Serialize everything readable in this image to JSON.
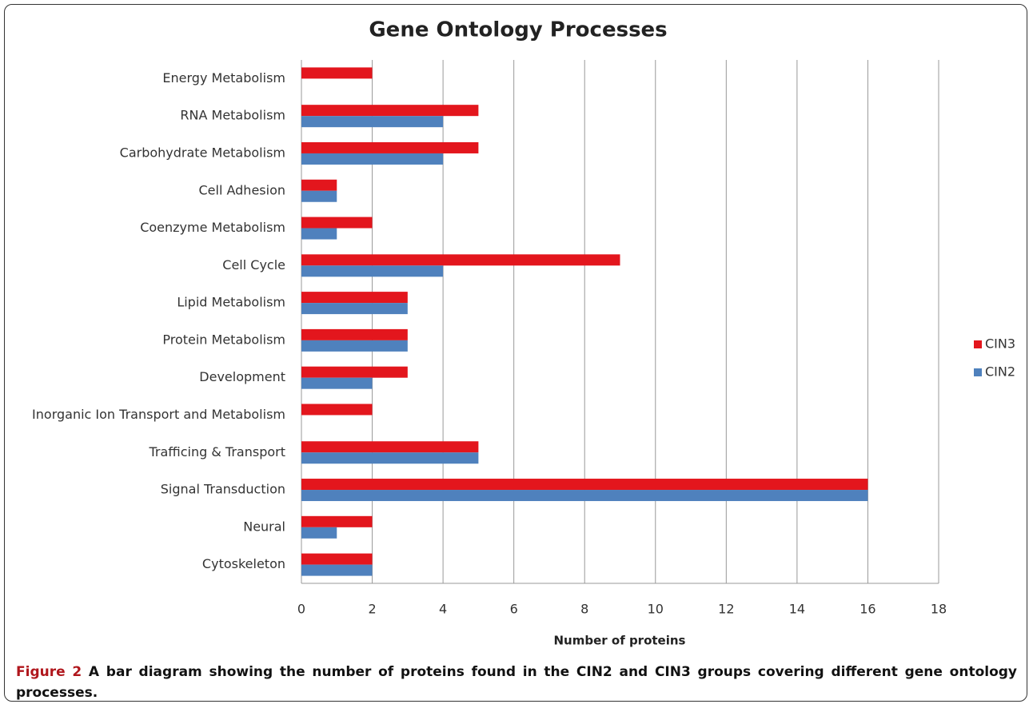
{
  "chart_data": {
    "type": "hbar",
    "title": "Gene Ontology Processes",
    "categories": [
      "Energy Metabolism",
      "RNA Metabolism",
      "Carbohydrate Metabolism",
      "Cell Adhesion",
      "Coenzyme Metabolism",
      "Cell Cycle",
      "Lipid Metabolism",
      "Protein Metabolism",
      "Development",
      "Inorganic Ion Transport and Metabolism",
      "Trafficing & Transport",
      "Signal Transduction",
      "Neural",
      "Cytoskeleton"
    ],
    "series": [
      {
        "name": "CIN3",
        "color": "#e3161d",
        "values": [
          2,
          5,
          5,
          1,
          2,
          9,
          3,
          3,
          3,
          2,
          5,
          16,
          2,
          2
        ]
      },
      {
        "name": "CIN2",
        "color": "#4f81bd",
        "values": [
          0,
          4,
          4,
          1,
          1,
          4,
          3,
          3,
          2,
          0,
          5,
          16,
          1,
          2
        ]
      }
    ],
    "xlabel": "Number of proteins",
    "xlim": [
      0,
      18
    ],
    "xticks": [
      0,
      2,
      4,
      6,
      8,
      10,
      12,
      14,
      16,
      18
    ],
    "grid": true,
    "legend": "right"
  },
  "caption": {
    "label": "Figure 2",
    "text": "A bar diagram showing the number of proteins found in the CIN2 and CIN3 groups covering different gene ontology processes."
  }
}
